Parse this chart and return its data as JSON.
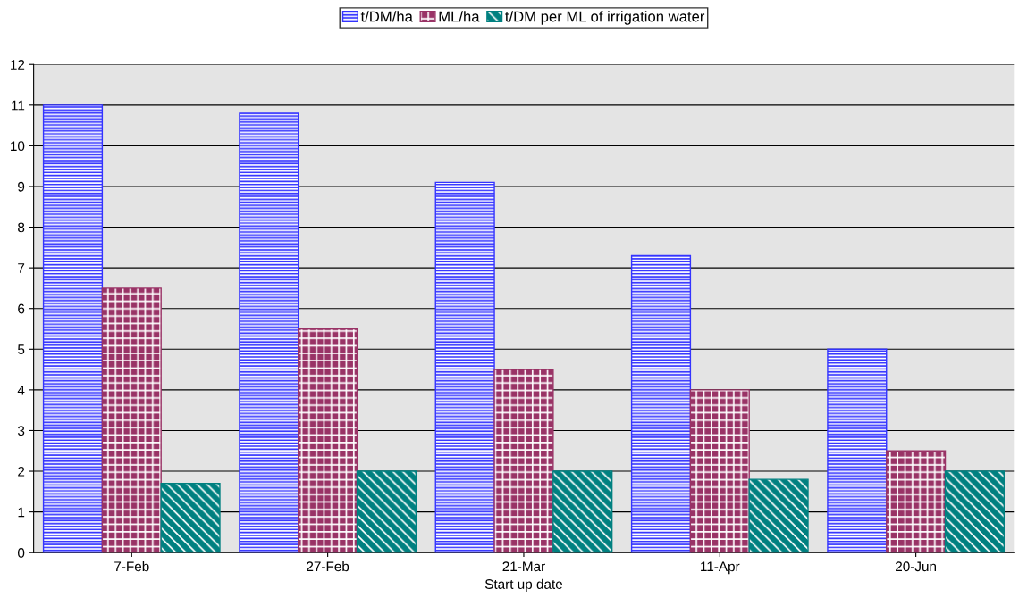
{
  "chart_data": {
    "type": "bar",
    "xlabel": "Start up date",
    "categories": [
      "7-Feb",
      "27-Feb",
      "21-Mar",
      "11-Apr",
      "20-Jun"
    ],
    "series": [
      {
        "name": "t/DM/ha",
        "color": "#3333ff",
        "values": [
          11.0,
          10.8,
          9.1,
          7.3,
          5.0
        ]
      },
      {
        "name": "ML/ha",
        "color": "#993366",
        "values": [
          6.5,
          5.5,
          4.5,
          4.0,
          2.5
        ]
      },
      {
        "name": "t/DM per ML of irrigation water",
        "color": "#008080",
        "values": [
          1.7,
          2.0,
          2.0,
          1.8,
          2.0
        ]
      }
    ],
    "ylim": [
      0,
      12
    ],
    "yticks": [
      0,
      1,
      2,
      3,
      4,
      5,
      6,
      7,
      8,
      9,
      10,
      11,
      12
    ],
    "grid": "y",
    "legend": "top"
  }
}
